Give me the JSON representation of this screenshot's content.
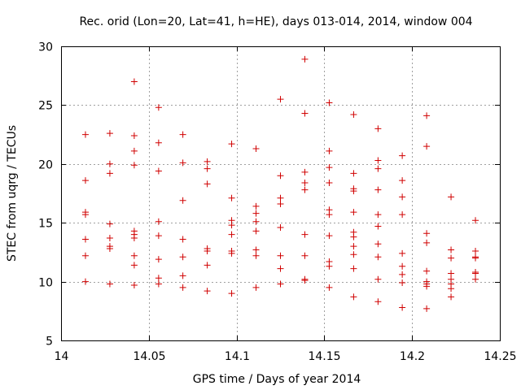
{
  "chart_data": {
    "type": "scatter",
    "title": "Rec. orid (Lon=20, Lat=41, h=HE), days 013-014, 2014, window 004",
    "xlabel": "GPS time / Days of year 2014",
    "ylabel": "STEC from uqrg / TECUs",
    "xlim": [
      14,
      14.25
    ],
    "ylim": [
      5,
      30
    ],
    "xticks": [
      "14",
      "14.05",
      "14.1",
      "14.15",
      "14.2",
      "14.25"
    ],
    "yticks": [
      "5",
      "10",
      "15",
      "20",
      "25",
      "30"
    ],
    "grid": true,
    "marker": "+",
    "color": "#d00000",
    "series": [
      {
        "name": "STEC",
        "points": [
          [
            14.0139,
            22.5
          ],
          [
            14.0139,
            18.6
          ],
          [
            14.0139,
            15.9
          ],
          [
            14.0139,
            15.7
          ],
          [
            14.0139,
            13.6
          ],
          [
            14.0139,
            12.2
          ],
          [
            14.0139,
            10.0
          ],
          [
            14.0278,
            22.6
          ],
          [
            14.0278,
            20.0
          ],
          [
            14.0278,
            19.2
          ],
          [
            14.0278,
            14.9
          ],
          [
            14.0278,
            13.7
          ],
          [
            14.0278,
            13.0
          ],
          [
            14.0278,
            12.8
          ],
          [
            14.0278,
            9.8
          ],
          [
            14.0417,
            27.0
          ],
          [
            14.0417,
            22.4
          ],
          [
            14.0417,
            21.1
          ],
          [
            14.0417,
            19.9
          ],
          [
            14.0417,
            14.3
          ],
          [
            14.0417,
            14.0
          ],
          [
            14.0417,
            13.7
          ],
          [
            14.0417,
            12.2
          ],
          [
            14.0417,
            11.4
          ],
          [
            14.0417,
            9.7
          ],
          [
            14.0556,
            24.8
          ],
          [
            14.0556,
            21.8
          ],
          [
            14.0556,
            19.4
          ],
          [
            14.0556,
            15.1
          ],
          [
            14.0556,
            13.9
          ],
          [
            14.0556,
            11.9
          ],
          [
            14.0556,
            10.3
          ],
          [
            14.0556,
            9.8
          ],
          [
            14.0694,
            22.5
          ],
          [
            14.0694,
            20.1
          ],
          [
            14.0694,
            16.9
          ],
          [
            14.0694,
            13.6
          ],
          [
            14.0694,
            12.1
          ],
          [
            14.0694,
            10.5
          ],
          [
            14.0694,
            9.5
          ],
          [
            14.0833,
            20.2
          ],
          [
            14.0833,
            19.6
          ],
          [
            14.0833,
            18.3
          ],
          [
            14.0833,
            12.8
          ],
          [
            14.0833,
            12.6
          ],
          [
            14.0833,
            11.4
          ],
          [
            14.0833,
            9.2
          ],
          [
            14.0972,
            21.7
          ],
          [
            14.0972,
            17.1
          ],
          [
            14.0972,
            15.2
          ],
          [
            14.0972,
            14.8
          ],
          [
            14.0972,
            14.0
          ],
          [
            14.0972,
            12.6
          ],
          [
            14.0972,
            12.4
          ],
          [
            14.0972,
            9.0
          ],
          [
            14.1111,
            21.3
          ],
          [
            14.1111,
            16.4
          ],
          [
            14.1111,
            15.8
          ],
          [
            14.1111,
            15.1
          ],
          [
            14.1111,
            14.3
          ],
          [
            14.1111,
            12.7
          ],
          [
            14.1111,
            12.2
          ],
          [
            14.1111,
            9.5
          ],
          [
            14.125,
            25.5
          ],
          [
            14.125,
            19.0
          ],
          [
            14.125,
            17.1
          ],
          [
            14.125,
            16.6
          ],
          [
            14.125,
            14.6
          ],
          [
            14.125,
            12.2
          ],
          [
            14.125,
            11.1
          ],
          [
            14.125,
            9.8
          ],
          [
            14.1389,
            28.9
          ],
          [
            14.1389,
            24.3
          ],
          [
            14.1389,
            19.3
          ],
          [
            14.1389,
            18.4
          ],
          [
            14.1389,
            17.8
          ],
          [
            14.1389,
            14.0
          ],
          [
            14.1389,
            12.2
          ],
          [
            14.1389,
            10.2
          ],
          [
            14.1389,
            10.1
          ],
          [
            14.1528,
            25.2
          ],
          [
            14.1528,
            21.1
          ],
          [
            14.1528,
            19.7
          ],
          [
            14.1528,
            18.4
          ],
          [
            14.1528,
            16.1
          ],
          [
            14.1528,
            15.7
          ],
          [
            14.1528,
            13.9
          ],
          [
            14.1528,
            11.7
          ],
          [
            14.1528,
            11.3
          ],
          [
            14.1528,
            9.5
          ],
          [
            14.1667,
            24.2
          ],
          [
            14.1667,
            19.2
          ],
          [
            14.1667,
            17.9
          ],
          [
            14.1667,
            17.7
          ],
          [
            14.1667,
            15.9
          ],
          [
            14.1667,
            14.2
          ],
          [
            14.1667,
            13.8
          ],
          [
            14.1667,
            13.0
          ],
          [
            14.1667,
            12.3
          ],
          [
            14.1667,
            11.1
          ],
          [
            14.1667,
            8.7
          ],
          [
            14.1806,
            23.0
          ],
          [
            14.1806,
            20.3
          ],
          [
            14.1806,
            19.6
          ],
          [
            14.1806,
            17.8
          ],
          [
            14.1806,
            15.7
          ],
          [
            14.1806,
            14.7
          ],
          [
            14.1806,
            13.2
          ],
          [
            14.1806,
            12.1
          ],
          [
            14.1806,
            10.2
          ],
          [
            14.1806,
            8.3
          ],
          [
            14.1944,
            20.7
          ],
          [
            14.1944,
            18.6
          ],
          [
            14.1944,
            17.2
          ],
          [
            14.1944,
            15.7
          ],
          [
            14.1944,
            12.4
          ],
          [
            14.1944,
            11.3
          ],
          [
            14.1944,
            10.6
          ],
          [
            14.1944,
            9.9
          ],
          [
            14.1944,
            7.8
          ],
          [
            14.2083,
            24.1
          ],
          [
            14.2083,
            21.5
          ],
          [
            14.2083,
            14.1
          ],
          [
            14.2083,
            13.3
          ],
          [
            14.2083,
            10.9
          ],
          [
            14.2083,
            10.0
          ],
          [
            14.2083,
            9.8
          ],
          [
            14.2083,
            9.6
          ],
          [
            14.2083,
            7.7
          ],
          [
            14.2222,
            17.2
          ],
          [
            14.2222,
            12.7
          ],
          [
            14.2222,
            12.0
          ],
          [
            14.2222,
            10.7
          ],
          [
            14.2222,
            10.2
          ],
          [
            14.2222,
            9.8
          ],
          [
            14.2222,
            9.4
          ],
          [
            14.2222,
            8.7
          ],
          [
            14.2361,
            15.2
          ],
          [
            14.2361,
            12.6
          ],
          [
            14.2361,
            12.1
          ],
          [
            14.2361,
            12.0
          ],
          [
            14.2361,
            10.8
          ],
          [
            14.2361,
            10.7
          ],
          [
            14.2361,
            10.2
          ]
        ]
      }
    ]
  }
}
